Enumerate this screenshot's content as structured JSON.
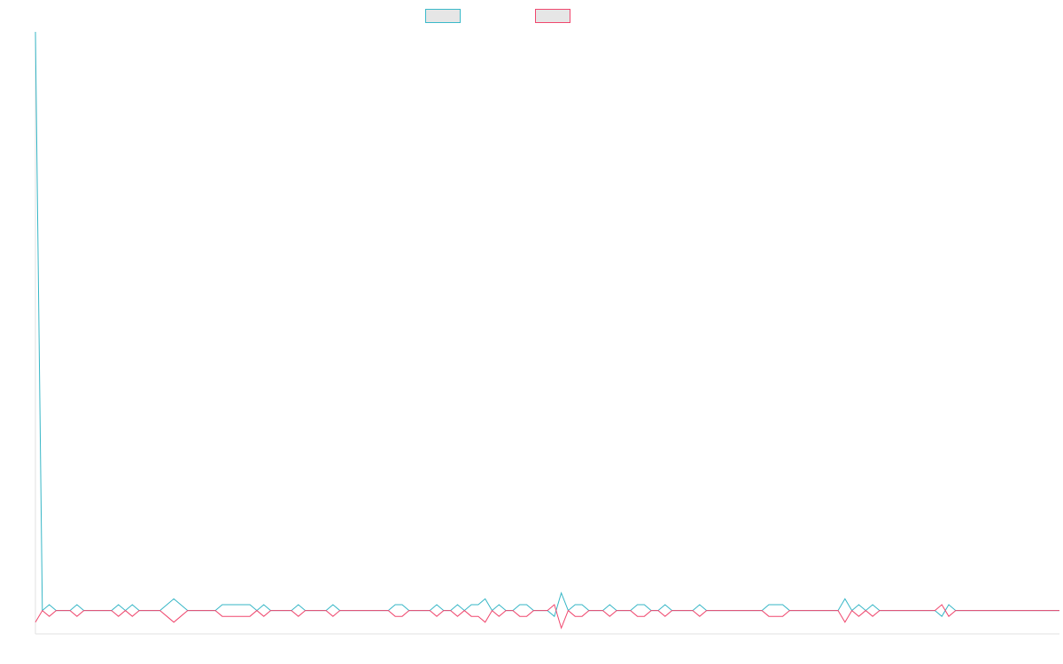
{
  "chart_data": {
    "type": "line",
    "title": "",
    "xlabel": "",
    "ylabel": "",
    "grid": false,
    "legend_position": "top-center",
    "x_count": 149,
    "series": [
      {
        "color": "#36b6c6",
        "values": [
          100,
          1,
          2,
          1,
          1,
          1,
          2,
          1,
          1,
          1,
          1,
          1,
          2,
          1,
          2,
          1,
          1,
          1,
          1,
          2,
          3,
          2,
          1,
          1,
          1,
          1,
          1,
          2,
          2,
          2,
          2,
          2,
          1,
          2,
          1,
          1,
          1,
          1,
          2,
          1,
          1,
          1,
          1,
          2,
          1,
          1,
          1,
          1,
          1,
          1,
          1,
          1,
          2,
          2,
          1,
          1,
          1,
          1,
          2,
          1,
          1,
          2,
          1,
          2,
          2,
          3,
          1,
          2,
          1,
          1,
          2,
          2,
          1,
          1,
          1,
          0,
          4,
          1,
          2,
          2,
          1,
          1,
          1,
          2,
          1,
          1,
          1,
          2,
          2,
          1,
          1,
          2,
          1,
          1,
          1,
          1,
          2,
          1,
          1,
          1,
          1,
          1,
          1,
          1,
          1,
          1,
          2,
          2,
          2,
          1,
          1,
          1,
          1,
          1,
          1,
          1,
          1,
          3,
          1,
          2,
          1,
          2,
          1,
          1,
          1,
          1,
          1,
          1,
          1,
          1,
          1,
          0,
          2,
          1,
          1,
          1,
          1,
          1,
          1,
          1,
          1,
          1,
          1,
          1,
          1,
          1,
          1,
          1,
          1
        ]
      },
      {
        "color": "#f0476e",
        "values": [
          -1,
          1,
          0,
          1,
          1,
          1,
          0,
          1,
          1,
          1,
          1,
          1,
          0,
          1,
          0,
          1,
          1,
          1,
          1,
          0,
          -1,
          0,
          1,
          1,
          1,
          1,
          1,
          0,
          0,
          0,
          0,
          0,
          1,
          0,
          1,
          1,
          1,
          1,
          0,
          1,
          1,
          1,
          1,
          0,
          1,
          1,
          1,
          1,
          1,
          1,
          1,
          1,
          0,
          0,
          1,
          1,
          1,
          1,
          0,
          1,
          1,
          0,
          1,
          0,
          0,
          -1,
          1,
          0,
          1,
          1,
          0,
          0,
          1,
          1,
          1,
          2,
          -2,
          1,
          0,
          0,
          1,
          1,
          1,
          0,
          1,
          1,
          1,
          0,
          0,
          1,
          1,
          0,
          1,
          1,
          1,
          1,
          0,
          1,
          1,
          1,
          1,
          1,
          1,
          1,
          1,
          1,
          0,
          0,
          0,
          1,
          1,
          1,
          1,
          1,
          1,
          1,
          1,
          -1,
          1,
          0,
          1,
          0,
          1,
          1,
          1,
          1,
          1,
          1,
          1,
          1,
          1,
          2,
          0,
          1,
          1,
          1,
          1,
          1,
          1,
          1,
          1,
          1,
          1,
          1,
          1,
          1,
          1,
          1,
          1
        ]
      }
    ],
    "ylim": [
      -3,
      100
    ]
  }
}
